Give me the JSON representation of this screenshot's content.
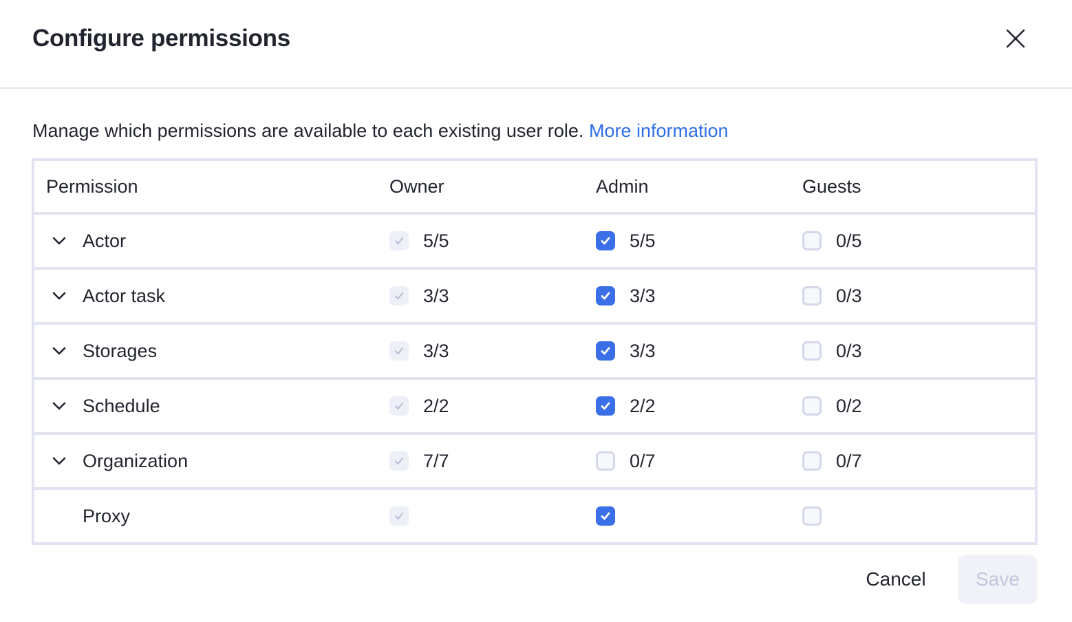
{
  "dialog": {
    "title": "Configure permissions",
    "description": "Manage which permissions are available to each existing user role.",
    "more_info_link": "More information",
    "cancel_label": "Cancel",
    "save_label": "Save",
    "save_disabled": true
  },
  "table": {
    "headers": [
      "Permission",
      "Owner",
      "Admin",
      "Guests"
    ],
    "rows": [
      {
        "name": "Actor",
        "expandable": true,
        "owner": {
          "state": "disabled-checked",
          "count": "5/5"
        },
        "admin": {
          "state": "checked",
          "count": "5/5"
        },
        "guests": {
          "state": "unchecked",
          "count": "0/5"
        }
      },
      {
        "name": "Actor task",
        "expandable": true,
        "owner": {
          "state": "disabled-checked",
          "count": "3/3"
        },
        "admin": {
          "state": "checked",
          "count": "3/3"
        },
        "guests": {
          "state": "unchecked",
          "count": "0/3"
        }
      },
      {
        "name": "Storages",
        "expandable": true,
        "owner": {
          "state": "disabled-checked",
          "count": "3/3"
        },
        "admin": {
          "state": "checked",
          "count": "3/3"
        },
        "guests": {
          "state": "unchecked",
          "count": "0/3"
        }
      },
      {
        "name": "Schedule",
        "expandable": true,
        "owner": {
          "state": "disabled-checked",
          "count": "2/2"
        },
        "admin": {
          "state": "checked",
          "count": "2/2"
        },
        "guests": {
          "state": "unchecked",
          "count": "0/2"
        }
      },
      {
        "name": "Organization",
        "expandable": true,
        "owner": {
          "state": "disabled-checked",
          "count": "7/7"
        },
        "admin": {
          "state": "unchecked",
          "count": "0/7"
        },
        "guests": {
          "state": "unchecked",
          "count": "0/7"
        }
      },
      {
        "name": "Proxy",
        "expandable": false,
        "owner": {
          "state": "disabled-checked",
          "count": ""
        },
        "admin": {
          "state": "checked",
          "count": ""
        },
        "guests": {
          "state": "unchecked",
          "count": ""
        }
      }
    ]
  },
  "colors": {
    "accent": "#3b6fe8",
    "link": "#2f6ee8",
    "border": "#e2e3f1",
    "text": "#22252f"
  }
}
